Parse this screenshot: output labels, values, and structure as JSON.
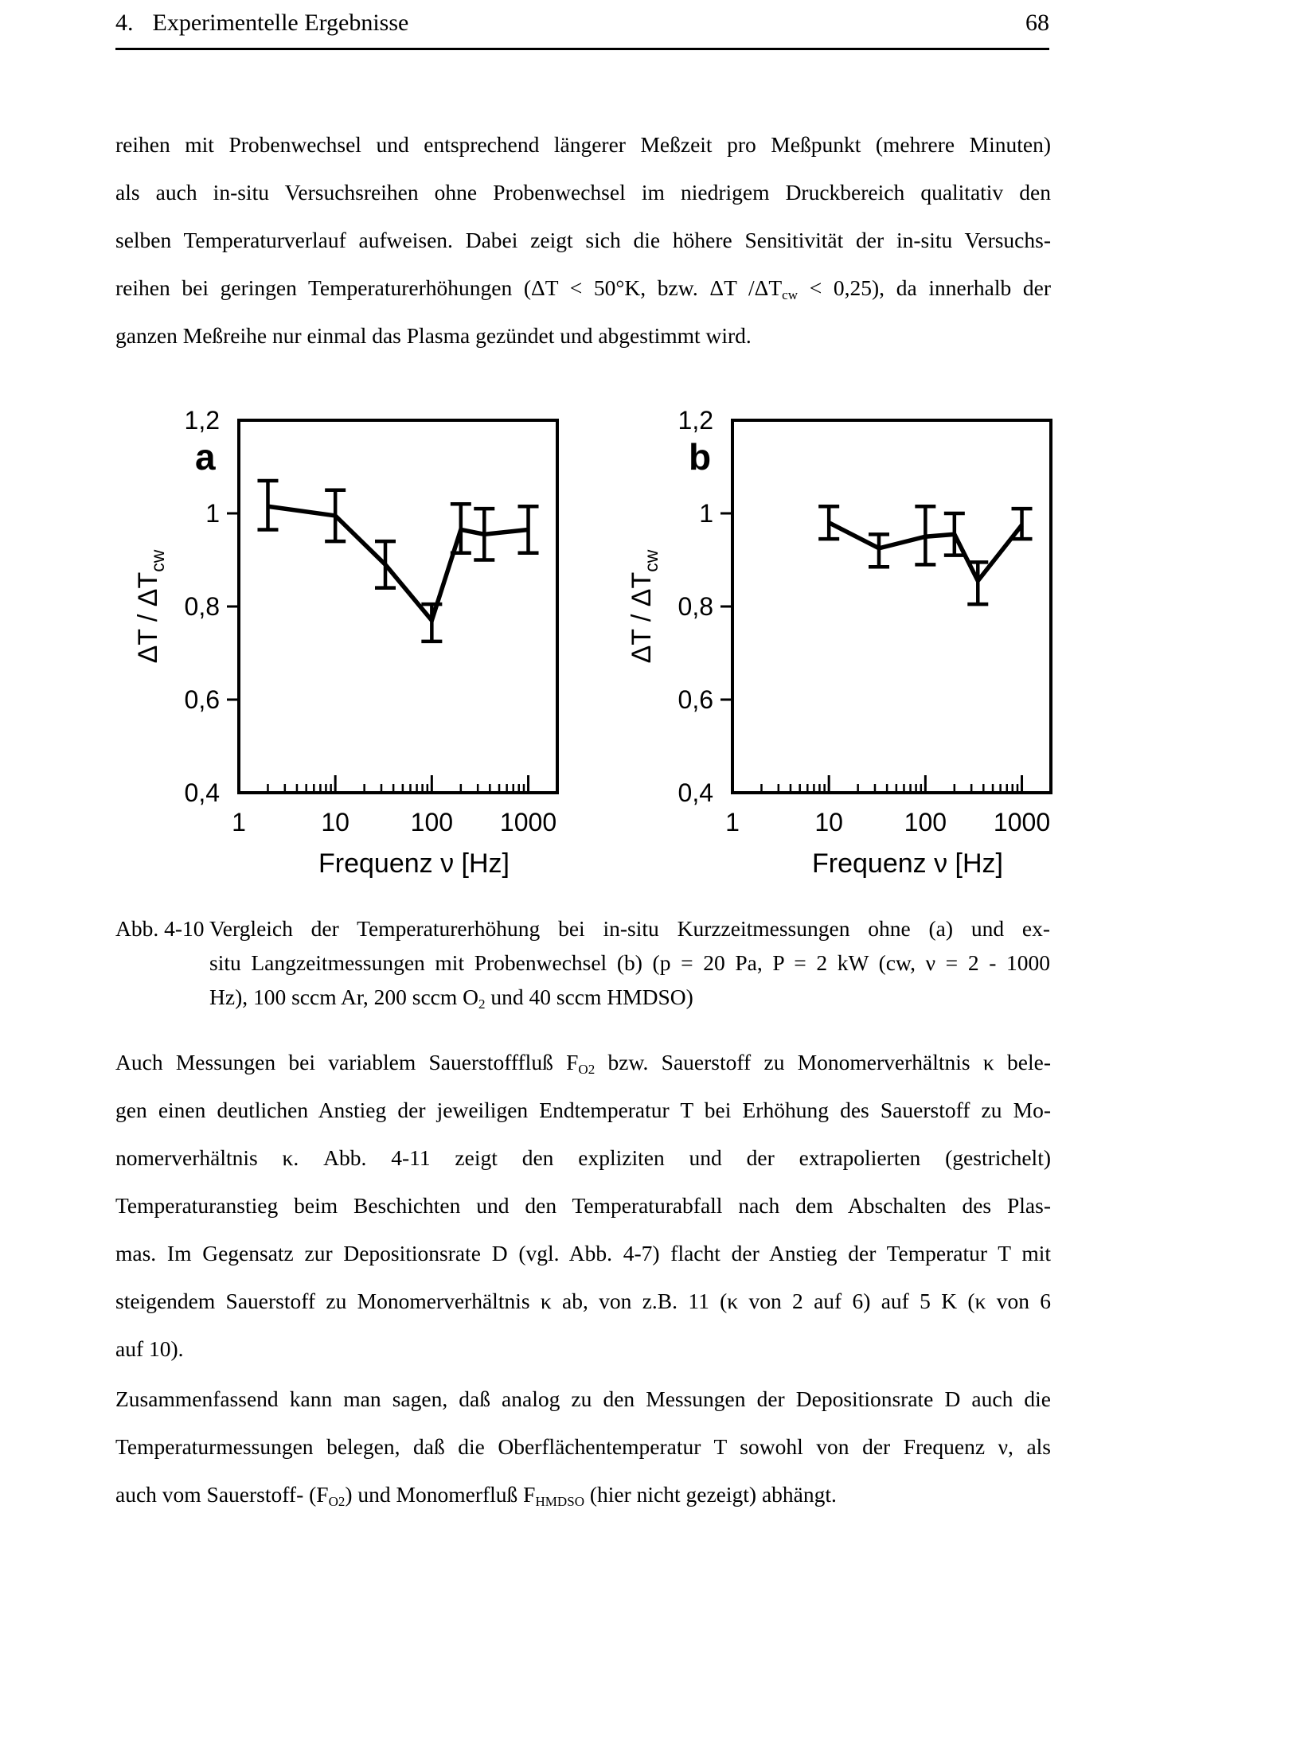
{
  "header": {
    "section_number": "4.",
    "section_title": "Experimentelle Ergebnisse",
    "page_number": "68"
  },
  "paragraphs": {
    "p1": {
      "lines": [
        [
          {
            "t": "reihen mit Probenwechsel und entsprechend längerer Meßzeit pro Meßpunkt (mehrere Minuten)"
          }
        ],
        [
          {
            "t": "als auch in-situ Versuchsreihen ohne Probenwechsel im niedrigem Druckbereich qualitativ den"
          }
        ],
        [
          {
            "t": "selben Temperaturverlauf aufweisen. Dabei zeigt sich die höhere Sensitivität der in-situ Versuchs-"
          }
        ],
        [
          {
            "t": "reihen bei geringen Temperaturerhöhungen (ΔT < 50°K, bzw. ΔT /ΔT"
          },
          {
            "t": "cw",
            "sub": true
          },
          {
            "t": " < 0,25), da innerhalb der"
          }
        ],
        [
          {
            "t": "ganzen Meßreihe nur einmal das Plasma gezündet und abgestimmt wird."
          }
        ]
      ]
    },
    "p2": {
      "lines": [
        [
          {
            "t": "Auch Messungen bei variablem Sauerstofffluß F"
          },
          {
            "t": "O2",
            "sub": true
          },
          {
            "t": " bzw. Sauerstoff zu Monomerverhältnis κ bele-"
          }
        ],
        [
          {
            "t": "gen einen deutlichen Anstieg der jeweiligen Endtemperatur T bei Erhöhung des Sauerstoff zu Mo-"
          }
        ],
        [
          {
            "t": "nomerverhältnis κ. Abb. 4-11 zeigt den expliziten und der extrapolierten (gestrichelt)"
          }
        ],
        [
          {
            "t": "Temperaturanstieg beim Beschichten und den Temperaturabfall nach dem Abschalten des Plas-"
          }
        ],
        [
          {
            "t": "mas. Im Gegensatz zur Depositionsrate D (vgl. Abb. 4-7) flacht der Anstieg der Temperatur T mit"
          }
        ],
        [
          {
            "t": "steigendem Sauerstoff zu Monomerverhältnis κ ab, von z.B. 11 (κ von 2 auf 6) auf 5 K (κ von 6"
          }
        ],
        [
          {
            "t": "auf 10)."
          }
        ]
      ]
    },
    "p3": {
      "lines": [
        [
          {
            "t": "Zusammenfassend kann man sagen, daß analog zu den Messungen der Depositionsrate D auch die"
          }
        ],
        [
          {
            "t": "Temperaturmessungen belegen, daß die Oberflächentemperatur T sowohl von der Frequenz ν, als"
          }
        ],
        [
          {
            "t": "auch vom Sauerstoff- (F"
          },
          {
            "t": "O2",
            "sub": true
          },
          {
            "t": ") und Monomerfluß F"
          },
          {
            "t": "HMDSO",
            "sub": true
          },
          {
            "t": " (hier nicht gezeigt) abhängt."
          }
        ]
      ]
    }
  },
  "caption": {
    "label": "Abb. 4-10",
    "lines": [
      [
        {
          "t": "Vergleich der Temperaturerhöhung bei in-situ Kurzzeitmessungen ohne (a) und ex-"
        }
      ],
      [
        {
          "t": "situ Langzeitmessungen mit Probenwechsel (b) (p = 20 Pa, P = 2 kW (cw, ν = 2 - 1000"
        }
      ],
      [
        {
          "t": "Hz), 100 sccm Ar, 200 sccm O"
        },
        {
          "t": "2",
          "sub": true
        },
        {
          "t": " und 40 sccm HMDSO)"
        }
      ]
    ]
  },
  "chart_data": [
    {
      "type": "line",
      "panel_label": "a",
      "xlabel": "Frequenz ν [Hz]",
      "ylabel_main": "ΔT / ΔT",
      "ylabel_sub": "cw",
      "x_scale": "log",
      "xlim": [
        1,
        2000
      ],
      "ylim": [
        0.4,
        1.2
      ],
      "grid": "off",
      "legend": "none",
      "x_major_ticks": [
        10,
        100,
        1000
      ],
      "x_tick_labels": [
        {
          "v": 1,
          "label": "1"
        },
        {
          "v": 10,
          "label": "10"
        },
        {
          "v": 100,
          "label": "100"
        },
        {
          "v": 1000,
          "label": "1000"
        }
      ],
      "y_ticks": [
        {
          "v": 0.4,
          "label": "0,4"
        },
        {
          "v": 0.6,
          "label": "0,6"
        },
        {
          "v": 0.8,
          "label": "0,8"
        },
        {
          "v": 1.0,
          "label": "1"
        },
        {
          "v": 1.2,
          "label": "1,2"
        }
      ],
      "series": [
        {
          "x": [
            2,
            10,
            33,
            100,
            200,
            350,
            1000
          ],
          "y": [
            1.015,
            0.995,
            0.89,
            0.77,
            0.965,
            0.955,
            0.965
          ],
          "err_up": [
            0.055,
            0.055,
            0.05,
            0.035,
            0.055,
            0.055,
            0.05
          ],
          "err_down": [
            0.05,
            0.055,
            0.05,
            0.045,
            0.05,
            0.055,
            0.05
          ]
        }
      ]
    },
    {
      "type": "line",
      "panel_label": "b",
      "xlabel": "Frequenz ν [Hz]",
      "ylabel_main": "ΔT / ΔT",
      "ylabel_sub": "cw",
      "x_scale": "log",
      "xlim": [
        1,
        2000
      ],
      "ylim": [
        0.4,
        1.2
      ],
      "grid": "off",
      "legend": "none",
      "x_major_ticks": [
        10,
        100,
        1000
      ],
      "x_tick_labels": [
        {
          "v": 1,
          "label": "1"
        },
        {
          "v": 10,
          "label": "10"
        },
        {
          "v": 100,
          "label": "100"
        },
        {
          "v": 1000,
          "label": "1000"
        }
      ],
      "y_ticks": [
        {
          "v": 0.4,
          "label": "0,4"
        },
        {
          "v": 0.6,
          "label": "0,6"
        },
        {
          "v": 0.8,
          "label": "0,8"
        },
        {
          "v": 1.0,
          "label": "1"
        },
        {
          "v": 1.2,
          "label": "1,2"
        }
      ],
      "series": [
        {
          "x": [
            10,
            33,
            100,
            200,
            350,
            1000
          ],
          "y": [
            0.98,
            0.925,
            0.95,
            0.955,
            0.855,
            0.975
          ],
          "err_up": [
            0.035,
            0.03,
            0.065,
            0.045,
            0.04,
            0.035
          ],
          "err_down": [
            0.035,
            0.04,
            0.06,
            0.045,
            0.05,
            0.03
          ]
        }
      ]
    }
  ]
}
